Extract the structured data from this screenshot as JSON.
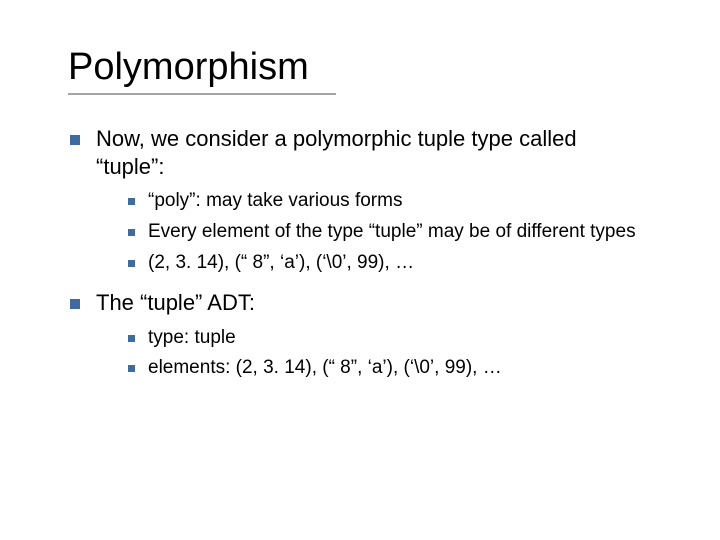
{
  "colors": {
    "background": "#ffffff",
    "text": "#000000",
    "bullet": "#3f6b9e",
    "underline": "#a5a5a5"
  },
  "typography": {
    "title_fontsize": 38,
    "lvl1_fontsize": 22,
    "lvl2_fontsize": 19,
    "font_family": "Verdana"
  },
  "title": "Polymorphism",
  "points": [
    {
      "text": "Now, we consider a polymorphic tuple type called “tuple”:",
      "sub": [
        "“poly”: may take various forms",
        "Every element of the type “tuple” may be of different types",
        "(2, 3. 14), (“ 8”, ‘a’), (‘\\0’, 99), …"
      ]
    },
    {
      "text": "The “tuple” ADT:",
      "sub": [
        "type: tuple",
        "elements: (2, 3. 14), (“ 8”, ‘a’), (‘\\0’, 99), …"
      ]
    }
  ]
}
